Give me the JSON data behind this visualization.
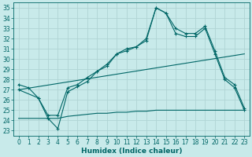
{
  "xlabel": "Humidex (Indice chaleur)",
  "xlim": [
    -0.5,
    23.5
  ],
  "ylim": [
    22.5,
    35.5
  ],
  "yticks": [
    23,
    24,
    25,
    26,
    27,
    28,
    29,
    30,
    31,
    32,
    33,
    34,
    35
  ],
  "xticks": [
    0,
    1,
    2,
    3,
    4,
    5,
    6,
    7,
    8,
    9,
    10,
    11,
    12,
    13,
    14,
    15,
    16,
    17,
    18,
    19,
    20,
    21,
    22,
    23
  ],
  "bg_color": "#c8eaea",
  "grid_color": "#b0d4d4",
  "line_color": "#006666",
  "line1_x": [
    0,
    1,
    2,
    3,
    4,
    5,
    6,
    7,
    8,
    9,
    10,
    11,
    12,
    13,
    14,
    15,
    16,
    17,
    18,
    19,
    20,
    21,
    22,
    23
  ],
  "line1_y": [
    27.5,
    27.2,
    26.2,
    24.2,
    23.2,
    26.8,
    27.3,
    27.8,
    28.8,
    29.3,
    30.5,
    30.8,
    31.2,
    31.8,
    35.0,
    34.5,
    32.5,
    32.2,
    32.2,
    33.0,
    30.5,
    28.0,
    27.2,
    25.0
  ],
  "line2_x": [
    0,
    2,
    3,
    4,
    5,
    6,
    7,
    8,
    9,
    10,
    11,
    12,
    13,
    14,
    15,
    16,
    17,
    18,
    19,
    20,
    21,
    22,
    23
  ],
  "line2_y": [
    27.0,
    26.2,
    24.5,
    24.5,
    27.2,
    27.5,
    28.2,
    28.8,
    29.5,
    30.5,
    31.0,
    31.2,
    32.0,
    35.0,
    34.5,
    33.0,
    32.5,
    32.5,
    33.2,
    30.8,
    28.2,
    27.5,
    25.2
  ],
  "line3_x": [
    0,
    23
  ],
  "line3_y": [
    27.0,
    30.5
  ],
  "line4_x": [
    0,
    1,
    2,
    3,
    4,
    5,
    6,
    7,
    8,
    9,
    10,
    11,
    12,
    13,
    14,
    15,
    16,
    17,
    18,
    19,
    20,
    21,
    22,
    23
  ],
  "line4_y": [
    24.2,
    24.2,
    24.2,
    24.2,
    24.2,
    24.4,
    24.5,
    24.6,
    24.7,
    24.7,
    24.8,
    24.8,
    24.9,
    24.9,
    25.0,
    25.0,
    25.0,
    25.0,
    25.0,
    25.0,
    25.0,
    25.0,
    25.0,
    25.0
  ],
  "fontsize_label": 6.5,
  "fontsize_tick": 5.5
}
